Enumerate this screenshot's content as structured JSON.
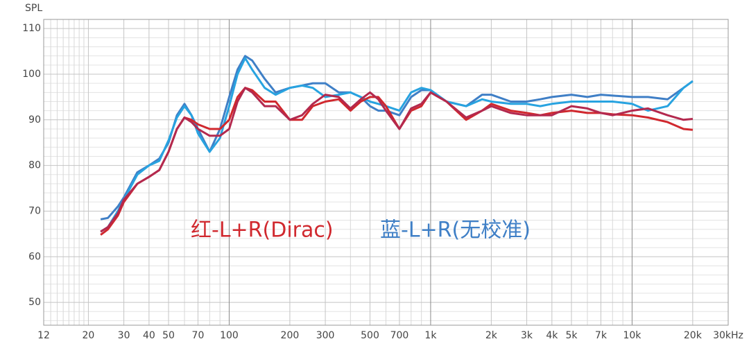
{
  "chart_data": {
    "type": "line",
    "y_label": "SPL",
    "log_x": true,
    "grid": true,
    "annotations": [
      {
        "text": "红-L+R(Dirac)",
        "color": "#d0282e"
      },
      {
        "text": "蓝-L+R(无校准)",
        "color": "#3f7fc6"
      }
    ],
    "xlim": [
      12,
      30000
    ],
    "ylim": [
      45,
      112
    ],
    "xticks": [
      12,
      20,
      30,
      40,
      50,
      70,
      100,
      200,
      300,
      500,
      700,
      {
        "value": 1000,
        "label": "1k"
      },
      {
        "value": 2000,
        "label": "2k"
      },
      {
        "value": 3000,
        "label": "3k"
      },
      {
        "value": 4000,
        "label": "4k"
      },
      {
        "value": 5000,
        "label": "5k"
      },
      {
        "value": 7000,
        "label": "7k"
      },
      {
        "value": 10000,
        "label": "10k"
      },
      {
        "value": 20000,
        "label": "20k"
      },
      {
        "value": 30000,
        "label": "30kHz"
      }
    ],
    "yticks": [
      50,
      60,
      70,
      80,
      90,
      100,
      110
    ],
    "xminor": [
      13,
      14,
      15,
      16,
      17,
      18,
      19,
      60,
      80,
      90,
      400,
      600,
      800,
      900,
      6000,
      8000,
      9000
    ],
    "yminor": [
      46,
      48,
      52,
      54,
      56,
      58,
      62,
      64,
      66,
      68,
      72,
      74,
      76,
      78,
      82,
      84,
      86,
      88,
      92,
      94,
      96,
      98,
      102,
      104,
      106,
      108,
      112
    ],
    "x": [
      23,
      25,
      28,
      30,
      35,
      40,
      45,
      50,
      55,
      60,
      65,
      70,
      80,
      90,
      100,
      110,
      120,
      130,
      150,
      170,
      200,
      230,
      260,
      300,
      350,
      400,
      450,
      500,
      550,
      600,
      700,
      800,
      900,
      1000,
      1200,
      1500,
      1800,
      2000,
      2500,
      3000,
      3500,
      4000,
      5000,
      6000,
      7000,
      8000,
      10000,
      12000,
      15000,
      18000,
      20000
    ],
    "series": [
      {
        "color": "#3f7fc6",
        "values": [
          68.2,
          68.5,
          71,
          73,
          78.5,
          80,
          81.5,
          85,
          91,
          93.5,
          91,
          88,
          83,
          88,
          95,
          101,
          104,
          103,
          99,
          96,
          97,
          97.5,
          98,
          98,
          96,
          96,
          95,
          93,
          92,
          92,
          91,
          95,
          96.5,
          96.5,
          94,
          93,
          95.5,
          95.5,
          94,
          94,
          94.5,
          95,
          95.5,
          95,
          95.5,
          95.3,
          95,
          95,
          94.5,
          97,
          98.5
        ]
      },
      {
        "color": "#28a3e0",
        "values": [
          65.5,
          66.5,
          70,
          72.5,
          78,
          80,
          81,
          85.5,
          90.5,
          93,
          91,
          87,
          83,
          86,
          93,
          100,
          103.5,
          101,
          97,
          95.5,
          97,
          97.5,
          97,
          95,
          95.5,
          96,
          95,
          94,
          93.5,
          93,
          92,
          96,
          97,
          96.5,
          94,
          93,
          94.5,
          94,
          93.5,
          93.5,
          93,
          93.5,
          94,
          94,
          94,
          94,
          93.5,
          92,
          93,
          97,
          98.5
        ]
      },
      {
        "color": "#d0282e",
        "values": [
          64.8,
          66,
          69,
          72,
          76,
          77.5,
          79,
          83,
          88,
          90.5,
          90,
          89,
          88,
          88,
          90,
          95,
          97,
          96.5,
          94,
          94,
          90,
          90,
          93,
          94,
          94.5,
          92,
          94,
          95,
          95,
          93,
          88,
          92,
          93,
          96,
          94,
          90,
          92,
          93.5,
          92,
          91.5,
          91,
          91.5,
          92,
          91.5,
          91.5,
          91.2,
          91,
          90.5,
          89.5,
          88,
          87.8
        ]
      },
      {
        "color": "#b3294e",
        "values": [
          65.5,
          66.5,
          69.5,
          72.5,
          76,
          77.5,
          79,
          83,
          88,
          90.5,
          89.5,
          88,
          86.5,
          86.5,
          88,
          94,
          97,
          96,
          93,
          93,
          90,
          91,
          93.5,
          95.5,
          95,
          92.5,
          94.5,
          96,
          94.5,
          92,
          88,
          92.5,
          93.5,
          96,
          94,
          90.5,
          92,
          93,
          91.5,
          91,
          91,
          91,
          93,
          92.5,
          91.5,
          91,
          92,
          92.5,
          91,
          90,
          90.2
        ]
      }
    ]
  }
}
